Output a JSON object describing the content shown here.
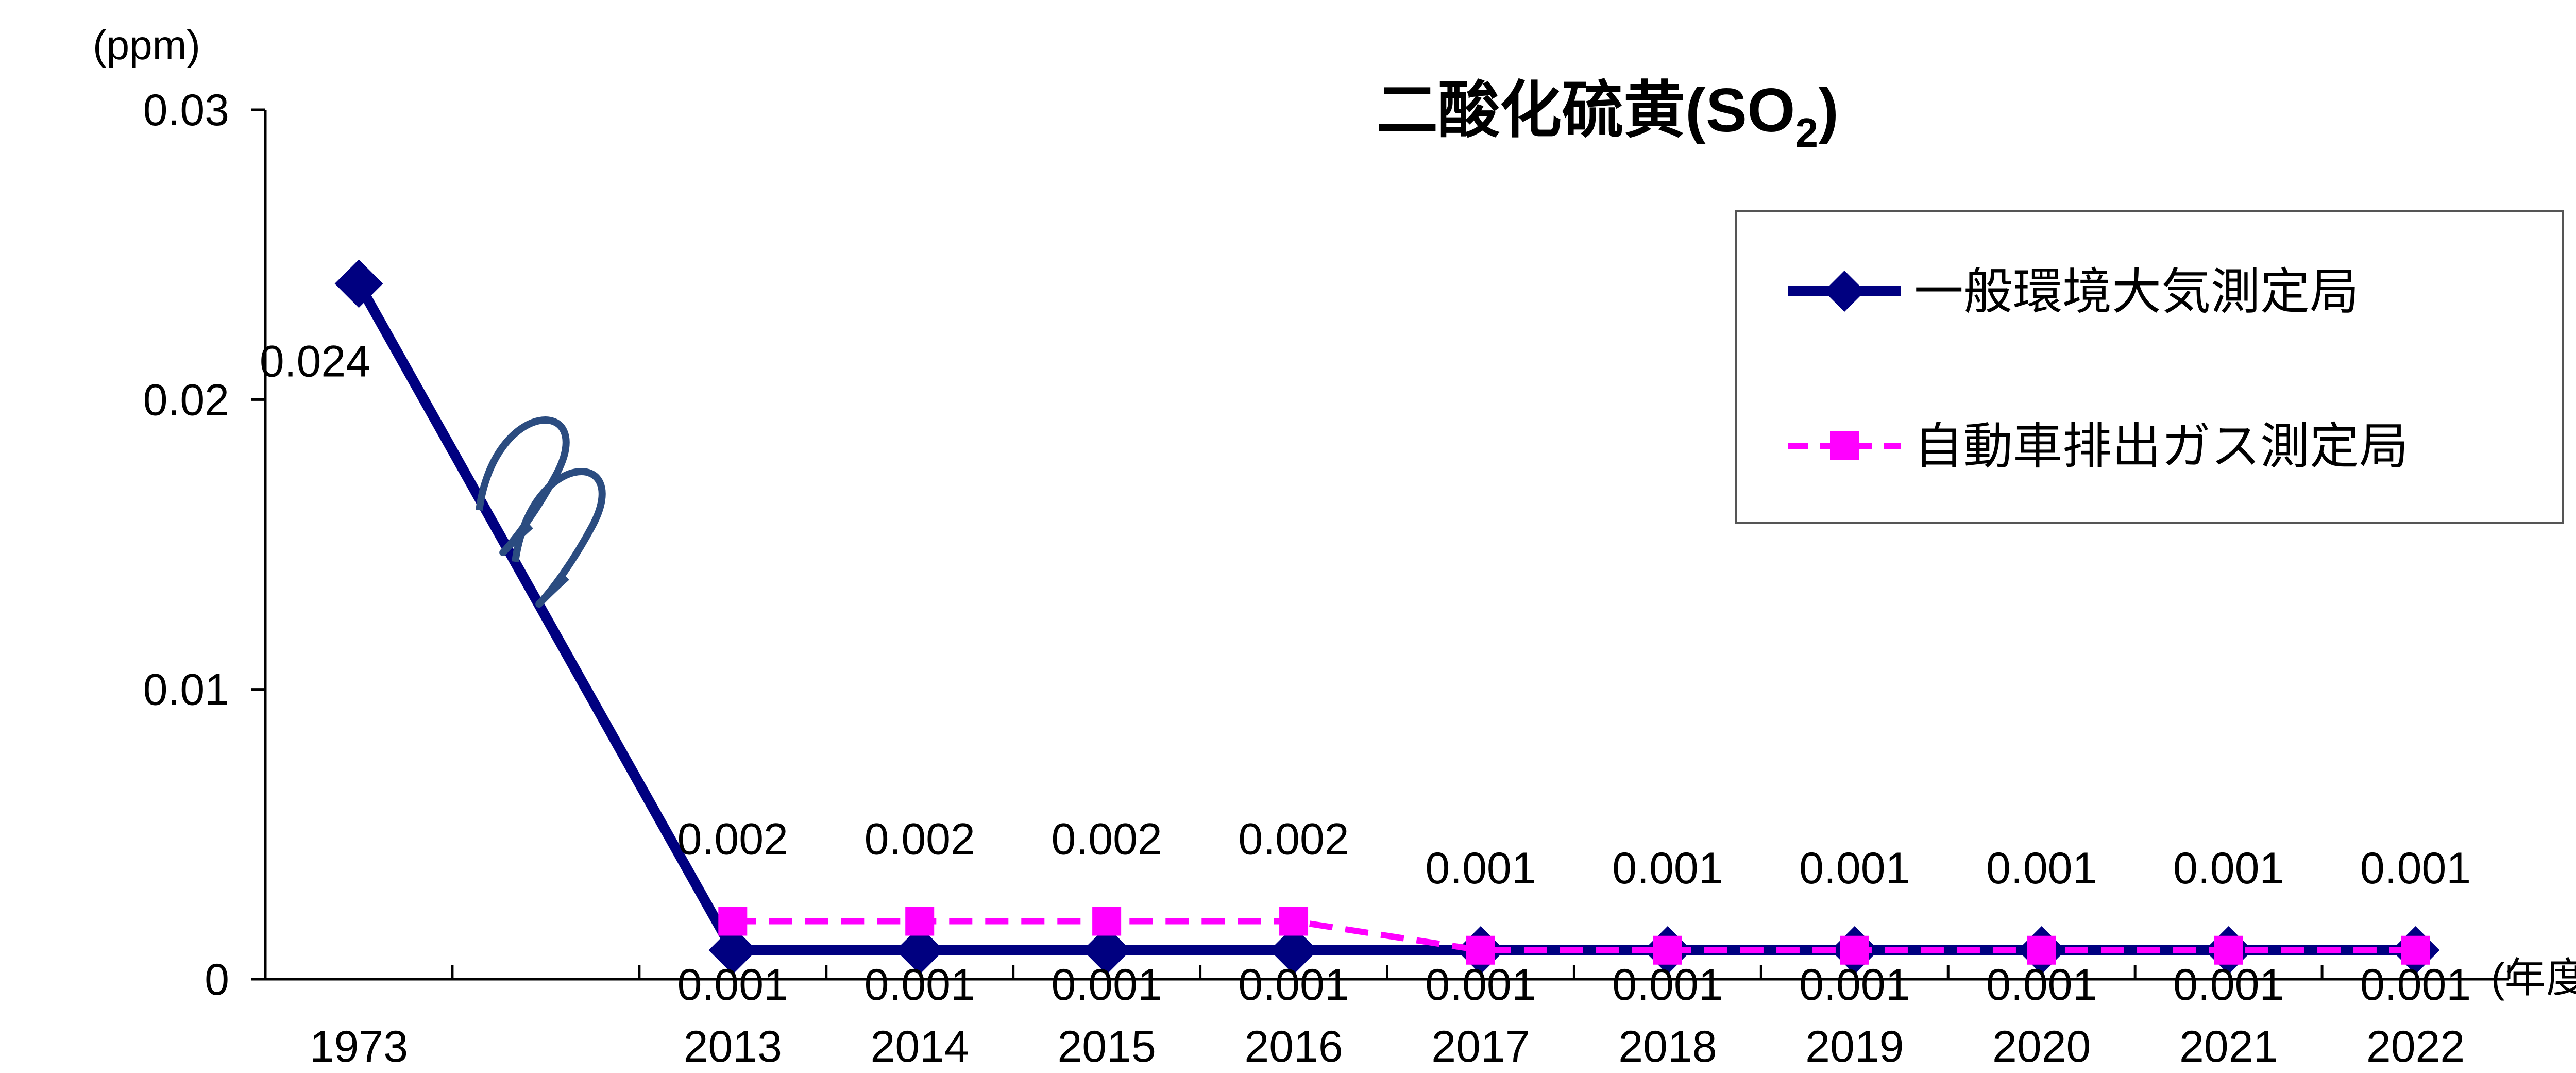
{
  "chart_data": {
    "type": "line",
    "title": "二酸化硫黄(SO",
    "title_subscript": "2",
    "title_close": ")",
    "ylabel": "(ppm)",
    "xlabel": "(年度)",
    "ylim": [
      0,
      0.03
    ],
    "y_ticks": [
      "0",
      "0.01",
      "0.02",
      "0.03"
    ],
    "y_tick_values": [
      0,
      0.01,
      0.02,
      0.03
    ],
    "categories": [
      "1973",
      "",
      "2013",
      "2014",
      "2015",
      "2016",
      "2017",
      "2018",
      "2019",
      "2020",
      "2021",
      "2022"
    ],
    "axis_break_between": [
      "1973",
      "2013"
    ],
    "legend_placement": "top-right",
    "grid": false,
    "series": [
      {
        "name": "一般環境大気測定局",
        "color": "#000080",
        "marker": "diamond",
        "line": "solid",
        "values": [
          0.024,
          null,
          0.001,
          0.001,
          0.001,
          0.001,
          0.001,
          0.001,
          0.001,
          0.001,
          0.001,
          0.001
        ],
        "labels": [
          "0.024",
          "",
          "0.001",
          "0.001",
          "0.001",
          "0.001",
          "0.001",
          "0.001",
          "0.001",
          "0.001",
          "0.001",
          "0.001"
        ]
      },
      {
        "name": "自動車排出ガス測定局",
        "color": "#ff00ff",
        "marker": "square",
        "line": "dashed",
        "values": [
          null,
          null,
          0.002,
          0.002,
          0.002,
          0.002,
          0.001,
          0.001,
          0.001,
          0.001,
          0.001,
          0.001
        ],
        "labels": [
          "",
          "",
          "0.002",
          "0.002",
          "0.002",
          "0.002",
          "0.001",
          "0.001",
          "0.001",
          "0.001",
          "0.001",
          "0.001"
        ]
      }
    ]
  }
}
